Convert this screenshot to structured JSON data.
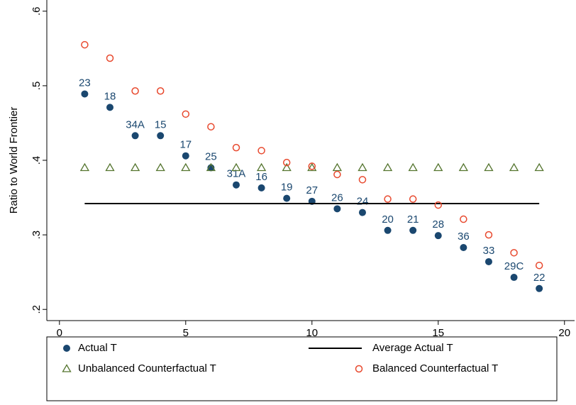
{
  "chart_data": {
    "type": "scatter",
    "y_label": "Ratio to World Frontier",
    "x": [
      1,
      2,
      3,
      4,
      5,
      6,
      7,
      8,
      9,
      10,
      11,
      12,
      13,
      14,
      15,
      16,
      17,
      18,
      19
    ],
    "xlim": [
      -0.5,
      20.4
    ],
    "xticks": [
      0,
      5,
      10,
      15,
      20
    ],
    "ylim": [
      0.185,
      0.615
    ],
    "yticks": [
      {
        "value": 0.2,
        "label": ".2"
      },
      {
        "value": 0.3,
        "label": ".3"
      },
      {
        "value": 0.4,
        "label": ".4"
      },
      {
        "value": 0.5,
        "label": ".5"
      },
      {
        "value": 0.6,
        "label": ".6"
      }
    ],
    "series": [
      {
        "name": "Actual T",
        "color": "#1a476f",
        "marker": "circle-filled",
        "values": [
          0.489,
          0.471,
          0.433,
          0.433,
          0.406,
          0.39,
          0.367,
          0.363,
          0.349,
          0.345,
          0.335,
          0.33,
          0.306,
          0.306,
          0.299,
          0.283,
          0.264,
          0.243,
          0.228
        ],
        "point_labels": [
          "23",
          "18",
          "34A",
          "15",
          "17",
          "25",
          "31A",
          "16",
          "19",
          "27",
          "26",
          "24",
          "20",
          "21",
          "28",
          "36",
          "33",
          "29C",
          "22"
        ]
      },
      {
        "name": "Average Actual T",
        "color": "#000000",
        "marker": "line",
        "values": [
          0.342,
          0.342,
          0.342,
          0.342,
          0.342,
          0.342,
          0.342,
          0.342,
          0.342,
          0.342,
          0.342,
          0.342,
          0.342,
          0.342,
          0.342,
          0.342,
          0.342,
          0.342,
          0.342
        ]
      },
      {
        "name": "Unbalanced Counterfactual T",
        "color": "#55752f",
        "marker": "triangle-hollow",
        "values": [
          0.39,
          0.39,
          0.39,
          0.39,
          0.39,
          0.39,
          0.39,
          0.39,
          0.39,
          0.39,
          0.39,
          0.39,
          0.39,
          0.39,
          0.39,
          0.39,
          0.39,
          0.39,
          0.39
        ]
      },
      {
        "name": "Balanced Counterfactual T",
        "color": "#e8492e",
        "marker": "circle-hollow",
        "values": [
          0.555,
          0.537,
          0.493,
          0.493,
          0.462,
          0.445,
          0.417,
          0.413,
          0.397,
          0.392,
          0.381,
          0.374,
          0.348,
          0.348,
          0.34,
          0.321,
          0.3,
          0.276,
          0.259
        ]
      }
    ]
  }
}
